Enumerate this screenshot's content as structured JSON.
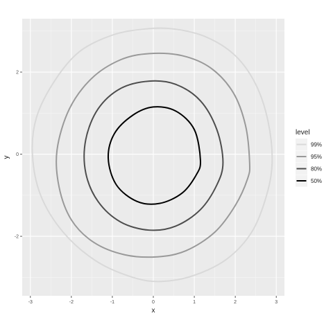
{
  "chart_data": {
    "type": "line",
    "subtype": "contour",
    "title": "",
    "xlabel": "x",
    "ylabel": "y",
    "xlim": [
      -3.2,
      3.2
    ],
    "ylim": [
      -3.45,
      3.3
    ],
    "x_ticks": [
      -3,
      -2,
      -1,
      0,
      1,
      2,
      3
    ],
    "y_ticks": [
      -2,
      0,
      2
    ],
    "grid": true,
    "background": "#ebebeb",
    "legend": {
      "title": "level",
      "position": "right",
      "items": [
        {
          "label": "99%",
          "color": "#d9d9d9"
        },
        {
          "label": "95%",
          "color": "#999999"
        },
        {
          "label": "80%",
          "color": "#4d4d4d"
        },
        {
          "label": "50%",
          "color": "#000000"
        }
      ]
    },
    "series": [
      {
        "name": "99%",
        "color": "#d9d9d9",
        "x": [
          2.9,
          2.8,
          2.5,
          2.0,
          1.3,
          0.5,
          -0.2,
          -1.0,
          -1.8,
          -2.4,
          -2.85,
          -2.95,
          -2.75,
          -2.2,
          -1.4,
          -0.5,
          0.2,
          1.0,
          1.8,
          2.4,
          2.75,
          2.9
        ],
        "y": [
          -0.2,
          0.8,
          1.7,
          2.4,
          2.85,
          3.05,
          3.05,
          2.9,
          2.5,
          1.8,
          0.9,
          0.0,
          -1.0,
          -1.9,
          -2.6,
          -3.0,
          -3.1,
          -2.95,
          -2.55,
          -1.9,
          -1.05,
          -0.2
        ]
      },
      {
        "name": "95%",
        "color": "#999999",
        "x": [
          2.35,
          2.25,
          1.95,
          1.4,
          0.7,
          -0.1,
          -0.8,
          -1.5,
          -2.05,
          -2.35,
          -2.3,
          -2.0,
          -1.45,
          -0.7,
          0.1,
          0.8,
          1.5,
          2.0,
          2.3,
          2.35
        ],
        "y": [
          -0.2,
          0.7,
          1.5,
          2.1,
          2.4,
          2.45,
          2.3,
          1.85,
          1.1,
          0.1,
          -0.8,
          -1.6,
          -2.15,
          -2.45,
          -2.5,
          -2.35,
          -1.9,
          -1.25,
          -0.6,
          -0.2
        ]
      },
      {
        "name": "80%",
        "color": "#4d4d4d",
        "x": [
          1.7,
          1.55,
          1.15,
          0.55,
          -0.1,
          -0.8,
          -1.35,
          -1.65,
          -1.65,
          -1.35,
          -0.8,
          -0.1,
          0.55,
          1.15,
          1.55,
          1.7
        ],
        "y": [
          -0.2,
          0.6,
          1.3,
          1.7,
          1.78,
          1.6,
          1.1,
          0.35,
          -0.45,
          -1.15,
          -1.65,
          -1.85,
          -1.75,
          -1.35,
          -0.75,
          -0.2
        ]
      },
      {
        "name": "50%",
        "color": "#000000",
        "x": [
          1.15,
          1.0,
          0.55,
          0.0,
          -0.5,
          -0.95,
          -1.1,
          -0.9,
          -0.4,
          0.15,
          0.7,
          1.05,
          1.15
        ],
        "y": [
          -0.15,
          0.6,
          1.05,
          1.15,
          0.95,
          0.5,
          -0.1,
          -0.75,
          -1.15,
          -1.2,
          -0.95,
          -0.5,
          -0.15
        ]
      }
    ]
  }
}
